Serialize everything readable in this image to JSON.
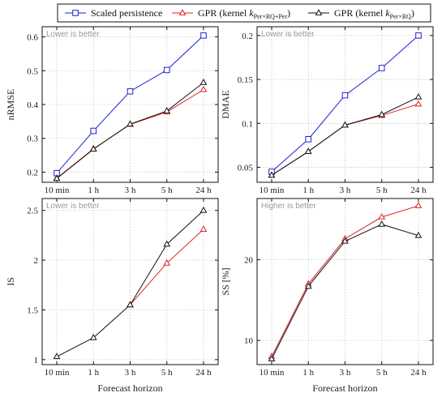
{
  "legend": {
    "items": [
      {
        "label": "Scaled persistence",
        "color": "#1f1fd6",
        "marker": "square"
      },
      {
        "label": "GPR (kernel kPer×RQ+Per)",
        "color": "#e02020",
        "marker": "triangle",
        "symbol": "k",
        "subscript": "Per×RQ+Per",
        "prefix": "GPR (kernel ",
        "suffix": ")"
      },
      {
        "label": "GPR (kernel kPer×RQ)",
        "color": "#111111",
        "marker": "triangle",
        "symbol": "k",
        "subscript": "Per×RQ",
        "prefix": "GPR (kernel ",
        "suffix": ")"
      }
    ]
  },
  "chart_data": [
    {
      "type": "line",
      "ylabel": "nRMSE",
      "xlabel": "",
      "note": "Lower is better",
      "categories": [
        "10 min",
        "1 h",
        "3 h",
        "5 h",
        "24 h"
      ],
      "ylim": [
        0.17,
        0.63
      ],
      "yticks": [
        0.2,
        0.3,
        0.4,
        0.5,
        0.6
      ],
      "ytick_labels": [
        "0.2",
        "0.3",
        "0.4",
        "0.5",
        "0.6"
      ],
      "grid": true,
      "series": [
        {
          "name": "Scaled persistence",
          "values": [
            0.197,
            0.322,
            0.439,
            0.502,
            0.604
          ]
        },
        {
          "name": "GPR (kernel kPer×RQ+Per)",
          "values": [
            0.182,
            0.269,
            0.341,
            0.378,
            0.444
          ]
        },
        {
          "name": "GPR (kernel kPer×RQ)",
          "values": [
            0.181,
            0.268,
            0.342,
            0.381,
            0.465
          ]
        }
      ]
    },
    {
      "type": "line",
      "ylabel": "DMAE",
      "xlabel": "",
      "note": "Lower is better",
      "categories": [
        "10 min",
        "1 h",
        "3 h",
        "5 h",
        "24 h"
      ],
      "ylim": [
        0.033,
        0.21
      ],
      "yticks": [
        0.05,
        0.1,
        0.15,
        0.2
      ],
      "ytick_labels": [
        "0.05",
        "0.1",
        "0.15",
        "0.2"
      ],
      "grid": true,
      "series": [
        {
          "name": "Scaled persistence",
          "values": [
            0.045,
            0.082,
            0.132,
            0.163,
            0.2
          ]
        },
        {
          "name": "GPR (kernel kPer×RQ+Per)",
          "values": [
            0.041,
            0.068,
            0.098,
            0.109,
            0.122
          ]
        },
        {
          "name": "GPR (kernel kPer×RQ)",
          "values": [
            0.041,
            0.068,
            0.098,
            0.11,
            0.13
          ]
        }
      ]
    },
    {
      "type": "line",
      "ylabel": "IS",
      "xlabel": "Forecast horizon",
      "note": "Lower is better",
      "categories": [
        "10 min",
        "1 h",
        "3 h",
        "5 h",
        "24 h"
      ],
      "ylim": [
        0.95,
        2.62
      ],
      "yticks": [
        1,
        1.5,
        2,
        2.5
      ],
      "ytick_labels": [
        "1",
        "1.5",
        "2",
        "2.5"
      ],
      "grid": true,
      "series": [
        {
          "name": "GPR (kernel kPer×RQ+Per)",
          "values": [
            null,
            null,
            1.55,
            1.97,
            2.31
          ]
        },
        {
          "name": "GPR (kernel kPer×RQ)",
          "values": [
            1.03,
            1.22,
            1.55,
            2.16,
            2.5
          ]
        }
      ]
    },
    {
      "type": "line",
      "ylabel": "SS [%]",
      "xlabel": "Forecast horizon",
      "note": "Higher is better",
      "categories": [
        "10 min",
        "1 h",
        "3 h",
        "5 h",
        "24 h"
      ],
      "ylim": [
        7,
        27.6
      ],
      "yticks": [
        10,
        20
      ],
      "ytick_labels": [
        "10",
        "20"
      ],
      "grid": true,
      "series": [
        {
          "name": "GPR (kernel kPer×RQ+Per)",
          "values": [
            8.0,
            17.0,
            22.6,
            25.3,
            26.7
          ]
        },
        {
          "name": "GPR (kernel kPer×RQ)",
          "values": [
            7.7,
            16.7,
            22.3,
            24.4,
            23.0
          ]
        }
      ]
    }
  ]
}
